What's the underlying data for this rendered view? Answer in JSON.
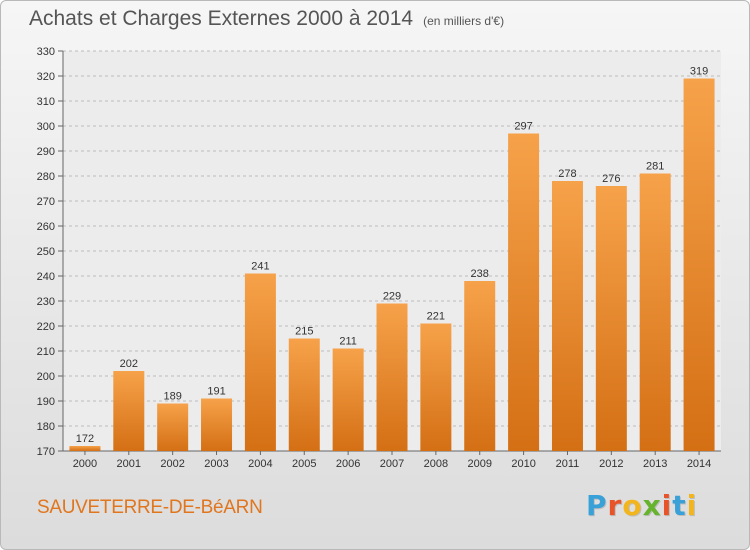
{
  "header": {
    "title": "Achats et Charges Externes 2000 à 2014",
    "unit": "(en milliers d'€)"
  },
  "footer": {
    "place": "SAUVETERRE-DE-BéARN",
    "logo_letters": [
      "P",
      "r",
      "o",
      "x",
      "i",
      "t",
      "i"
    ],
    "logo_colors": [
      "#3aa0d8",
      "#e8542a",
      "#f2b51e",
      "#66b32e",
      "#e8542a",
      "#3aa0d8",
      "#f2b51e"
    ],
    "place_color": "#e0761e"
  },
  "chart_data": {
    "type": "bar",
    "title": "Achats et Charges Externes 2000 à 2014",
    "subtitle": "(en milliers d'€)",
    "categories": [
      "2000",
      "2001",
      "2002",
      "2003",
      "2004",
      "2005",
      "2006",
      "2007",
      "2008",
      "2009",
      "2010",
      "2011",
      "2012",
      "2013",
      "2014"
    ],
    "values": [
      172,
      202,
      189,
      191,
      241,
      215,
      211,
      229,
      221,
      238,
      297,
      278,
      276,
      281,
      319
    ],
    "ylim": [
      170,
      330
    ],
    "yticks": [
      170,
      180,
      190,
      200,
      210,
      220,
      230,
      240,
      250,
      260,
      270,
      280,
      290,
      300,
      310,
      320,
      330
    ],
    "grid": true,
    "legend": "none",
    "bar_color": "#f39c3c",
    "bar_color_dark": "#cf6d16"
  }
}
